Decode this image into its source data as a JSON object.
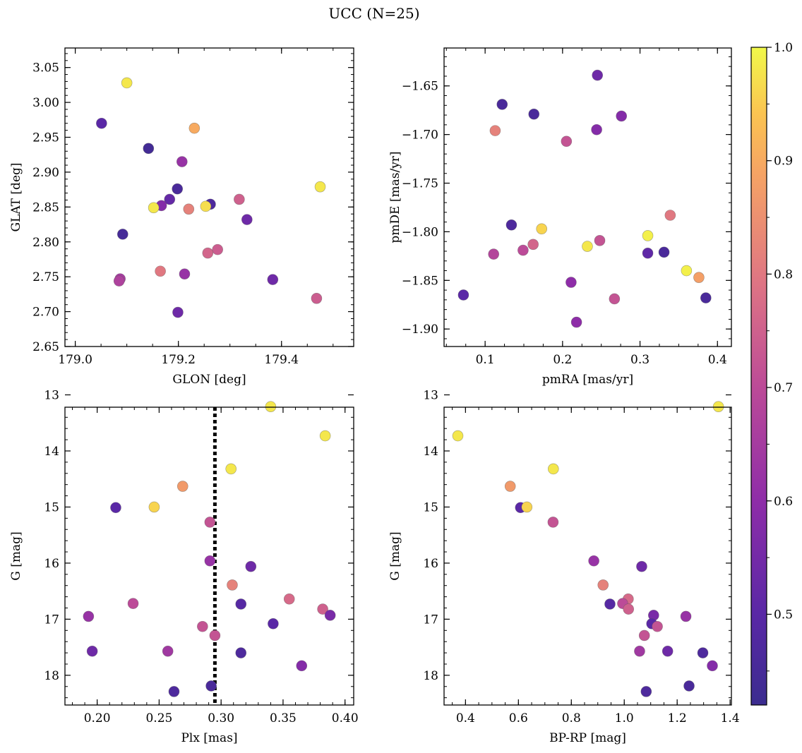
{
  "figure": {
    "title": "UCC (N=25)",
    "colormap": "plasma",
    "colorbar": {
      "min": 0.42,
      "max": 1.0,
      "ticks": [
        0.5,
        0.6,
        0.7,
        0.8,
        0.9,
        1.0
      ]
    }
  },
  "chart_data": [
    {
      "type": "scatter",
      "id": "glon-glat",
      "xlabel": "GLON [deg]",
      "ylabel": "GLAT [deg]",
      "xlim": [
        178.98,
        179.54
      ],
      "ylim": [
        2.65,
        3.078
      ],
      "xticks": [
        179.0,
        179.2,
        179.4
      ],
      "yticks": [
        2.65,
        2.7,
        2.75,
        2.8,
        2.85,
        2.9,
        2.95,
        3.0,
        3.05
      ],
      "y_inverted": false,
      "points": [
        {
          "x": 179.1,
          "y": 3.028,
          "c": 0.98
        },
        {
          "x": 179.051,
          "y": 2.97,
          "c": 0.5
        },
        {
          "x": 179.231,
          "y": 2.963,
          "c": 0.9
        },
        {
          "x": 179.142,
          "y": 2.934,
          "c": 0.44
        },
        {
          "x": 179.207,
          "y": 2.915,
          "c": 0.62
        },
        {
          "x": 179.475,
          "y": 2.879,
          "c": 0.98
        },
        {
          "x": 179.198,
          "y": 2.876,
          "c": 0.46
        },
        {
          "x": 179.183,
          "y": 2.861,
          "c": 0.52
        },
        {
          "x": 179.318,
          "y": 2.861,
          "c": 0.75
        },
        {
          "x": 179.262,
          "y": 2.854,
          "c": 0.47
        },
        {
          "x": 179.167,
          "y": 2.852,
          "c": 0.58
        },
        {
          "x": 179.152,
          "y": 2.849,
          "c": 0.98
        },
        {
          "x": 179.253,
          "y": 2.851,
          "c": 0.97
        },
        {
          "x": 179.22,
          "y": 2.847,
          "c": 0.82
        },
        {
          "x": 179.333,
          "y": 2.832,
          "c": 0.54
        },
        {
          "x": 179.092,
          "y": 2.811,
          "c": 0.45
        },
        {
          "x": 179.276,
          "y": 2.789,
          "c": 0.74
        },
        {
          "x": 179.257,
          "y": 2.784,
          "c": 0.76
        },
        {
          "x": 179.165,
          "y": 2.758,
          "c": 0.8
        },
        {
          "x": 179.212,
          "y": 2.754,
          "c": 0.62
        },
        {
          "x": 179.087,
          "y": 2.747,
          "c": 0.65
        },
        {
          "x": 179.085,
          "y": 2.744,
          "c": 0.67
        },
        {
          "x": 179.383,
          "y": 2.746,
          "c": 0.54
        },
        {
          "x": 179.468,
          "y": 2.719,
          "c": 0.74
        },
        {
          "x": 179.199,
          "y": 2.699,
          "c": 0.54
        }
      ]
    },
    {
      "type": "scatter",
      "id": "pmra-pmde",
      "xlabel": "pmRA [mas/yr]",
      "ylabel": "pmDE [mas/yr]",
      "xlim": [
        0.047,
        0.418
      ],
      "ylim": [
        -1.918,
        -1.611
      ],
      "xticks": [
        0.1,
        0.2,
        0.3,
        0.4
      ],
      "yticks": [
        -1.9,
        -1.85,
        -1.8,
        -1.75,
        -1.7,
        -1.65
      ],
      "y_inverted": false,
      "points": [
        {
          "x": 0.245,
          "y": -1.639,
          "c": 0.54
        },
        {
          "x": 0.122,
          "y": -1.669,
          "c": 0.46
        },
        {
          "x": 0.163,
          "y": -1.679,
          "c": 0.46
        },
        {
          "x": 0.276,
          "y": -1.681,
          "c": 0.58
        },
        {
          "x": 0.244,
          "y": -1.695,
          "c": 0.58
        },
        {
          "x": 0.113,
          "y": -1.696,
          "c": 0.82
        },
        {
          "x": 0.205,
          "y": -1.707,
          "c": 0.72
        },
        {
          "x": 0.339,
          "y": -1.783,
          "c": 0.8
        },
        {
          "x": 0.134,
          "y": -1.793,
          "c": 0.47
        },
        {
          "x": 0.173,
          "y": -1.797,
          "c": 0.96
        },
        {
          "x": 0.31,
          "y": -1.804,
          "c": 0.99
        },
        {
          "x": 0.248,
          "y": -1.809,
          "c": 0.72
        },
        {
          "x": 0.162,
          "y": -1.813,
          "c": 0.76
        },
        {
          "x": 0.232,
          "y": -1.815,
          "c": 0.98
        },
        {
          "x": 0.149,
          "y": -1.819,
          "c": 0.7
        },
        {
          "x": 0.331,
          "y": -1.821,
          "c": 0.46
        },
        {
          "x": 0.31,
          "y": -1.822,
          "c": 0.51
        },
        {
          "x": 0.111,
          "y": -1.823,
          "c": 0.68
        },
        {
          "x": 0.36,
          "y": -1.84,
          "c": 0.99
        },
        {
          "x": 0.376,
          "y": -1.847,
          "c": 0.88
        },
        {
          "x": 0.211,
          "y": -1.852,
          "c": 0.6
        },
        {
          "x": 0.072,
          "y": -1.865,
          "c": 0.5
        },
        {
          "x": 0.385,
          "y": -1.868,
          "c": 0.46
        },
        {
          "x": 0.267,
          "y": -1.869,
          "c": 0.72
        },
        {
          "x": 0.218,
          "y": -1.893,
          "c": 0.6
        }
      ]
    },
    {
      "type": "scatter",
      "id": "plx-g",
      "xlabel": "Plx [mas]",
      "ylabel": "G [mag]",
      "xlim": [
        0.174,
        0.407
      ],
      "ylim": [
        13.22,
        18.53
      ],
      "xticks": [
        0.2,
        0.25,
        0.3,
        0.35,
        0.4
      ],
      "yticks": [
        13,
        14,
        15,
        16,
        17,
        18
      ],
      "y_inverted": true,
      "vline": {
        "x": 0.295,
        "style": "dotted"
      },
      "points": [
        {
          "x": 0.34,
          "y": 13.21,
          "c": 0.98
        },
        {
          "x": 0.384,
          "y": 13.73,
          "c": 0.98
        },
        {
          "x": 0.308,
          "y": 14.32,
          "c": 0.98
        },
        {
          "x": 0.269,
          "y": 14.63,
          "c": 0.87
        },
        {
          "x": 0.215,
          "y": 15.01,
          "c": 0.5
        },
        {
          "x": 0.246,
          "y": 15.0,
          "c": 0.96
        },
        {
          "x": 0.291,
          "y": 15.27,
          "c": 0.72
        },
        {
          "x": 0.291,
          "y": 15.96,
          "c": 0.62
        },
        {
          "x": 0.324,
          "y": 16.06,
          "c": 0.54
        },
        {
          "x": 0.309,
          "y": 16.39,
          "c": 0.82
        },
        {
          "x": 0.355,
          "y": 16.64,
          "c": 0.77
        },
        {
          "x": 0.229,
          "y": 16.72,
          "c": 0.7
        },
        {
          "x": 0.316,
          "y": 16.73,
          "c": 0.49
        },
        {
          "x": 0.382,
          "y": 16.82,
          "c": 0.75
        },
        {
          "x": 0.388,
          "y": 16.93,
          "c": 0.56
        },
        {
          "x": 0.193,
          "y": 16.95,
          "c": 0.62
        },
        {
          "x": 0.342,
          "y": 17.08,
          "c": 0.5
        },
        {
          "x": 0.285,
          "y": 17.13,
          "c": 0.72
        },
        {
          "x": 0.295,
          "y": 17.29,
          "c": 0.72
        },
        {
          "x": 0.196,
          "y": 17.57,
          "c": 0.54
        },
        {
          "x": 0.257,
          "y": 17.57,
          "c": 0.64
        },
        {
          "x": 0.316,
          "y": 17.6,
          "c": 0.47
        },
        {
          "x": 0.365,
          "y": 17.83,
          "c": 0.58
        },
        {
          "x": 0.292,
          "y": 18.19,
          "c": 0.46
        },
        {
          "x": 0.262,
          "y": 18.29,
          "c": 0.47
        }
      ]
    },
    {
      "type": "scatter",
      "id": "bprp-g",
      "xlabel": "BP-RP [mag]",
      "ylabel": "G [mag]",
      "xlim": [
        0.319,
        1.405
      ],
      "ylim": [
        13.22,
        18.53
      ],
      "xticks": [
        0.4,
        0.6,
        0.8,
        1.0,
        1.2,
        1.4
      ],
      "yticks": [
        13,
        14,
        15,
        16,
        17,
        18
      ],
      "y_inverted": true,
      "points": [
        {
          "x": 1.356,
          "y": 13.21,
          "c": 0.98
        },
        {
          "x": 0.371,
          "y": 13.73,
          "c": 0.98
        },
        {
          "x": 0.732,
          "y": 14.32,
          "c": 0.98
        },
        {
          "x": 0.569,
          "y": 14.63,
          "c": 0.87
        },
        {
          "x": 0.608,
          "y": 15.01,
          "c": 0.5
        },
        {
          "x": 0.632,
          "y": 15.0,
          "c": 0.96
        },
        {
          "x": 0.731,
          "y": 15.27,
          "c": 0.72
        },
        {
          "x": 0.885,
          "y": 15.96,
          "c": 0.62
        },
        {
          "x": 1.066,
          "y": 16.06,
          "c": 0.54
        },
        {
          "x": 0.92,
          "y": 16.39,
          "c": 0.82
        },
        {
          "x": 1.015,
          "y": 16.64,
          "c": 0.77
        },
        {
          "x": 0.994,
          "y": 16.72,
          "c": 0.7
        },
        {
          "x": 0.946,
          "y": 16.73,
          "c": 0.49
        },
        {
          "x": 1.016,
          "y": 16.82,
          "c": 0.75
        },
        {
          "x": 1.111,
          "y": 16.93,
          "c": 0.56
        },
        {
          "x": 1.233,
          "y": 16.95,
          "c": 0.62
        },
        {
          "x": 1.104,
          "y": 17.08,
          "c": 0.5
        },
        {
          "x": 1.125,
          "y": 17.13,
          "c": 0.72
        },
        {
          "x": 1.076,
          "y": 17.29,
          "c": 0.72
        },
        {
          "x": 1.058,
          "y": 17.57,
          "c": 0.64
        },
        {
          "x": 1.164,
          "y": 17.57,
          "c": 0.54
        },
        {
          "x": 1.297,
          "y": 17.6,
          "c": 0.47
        },
        {
          "x": 1.333,
          "y": 17.83,
          "c": 0.58
        },
        {
          "x": 1.245,
          "y": 18.19,
          "c": 0.46
        },
        {
          "x": 1.083,
          "y": 18.29,
          "c": 0.47
        }
      ]
    }
  ]
}
